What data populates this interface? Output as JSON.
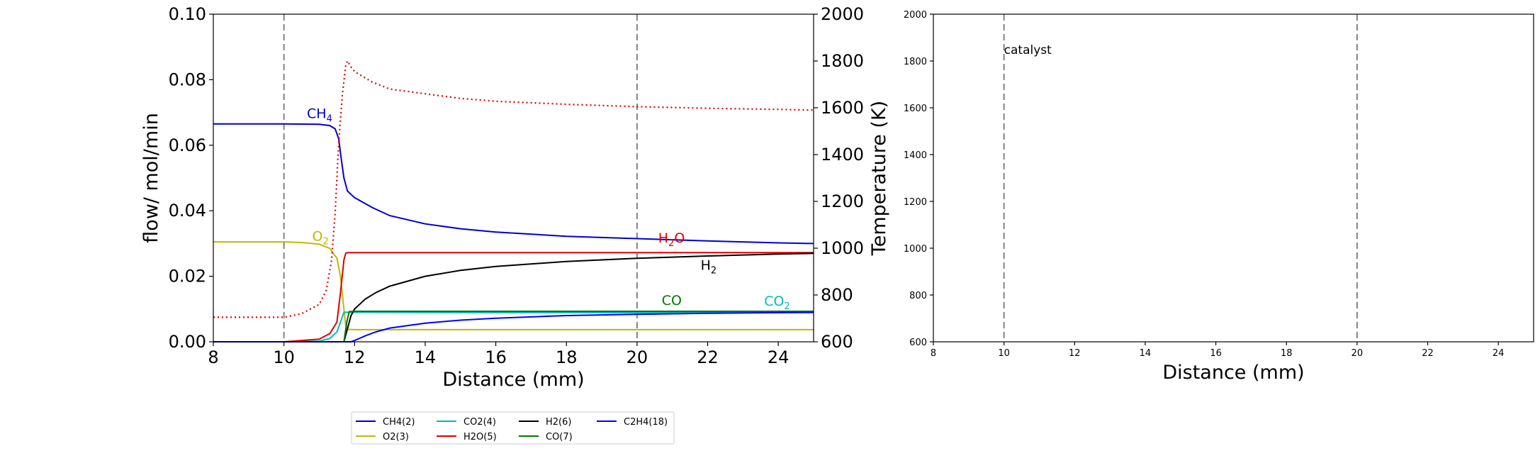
{
  "chart_data": [
    {
      "type": "line",
      "xlabel": "Distance (mm)",
      "ylabel": "flow/ mol/min",
      "y2label": "Temperature (K)",
      "xlim": [
        8,
        25
      ],
      "ylim": [
        0,
        0.1
      ],
      "y2lim": [
        600,
        2000
      ],
      "xticks": [
        "8",
        "10",
        "12",
        "14",
        "16",
        "18",
        "20",
        "22",
        "24"
      ],
      "yticks": [
        "0.00",
        "0.02",
        "0.04",
        "0.06",
        "0.08",
        "0.10"
      ],
      "y2ticks": [
        "600",
        "800",
        "1000",
        "1200",
        "1400",
        "1600",
        "1800",
        "2000"
      ],
      "vlines": [
        10,
        20
      ],
      "grid": false,
      "legend_position": "below",
      "series": [
        {
          "name": "CH4(2)",
          "color": "#0000cc",
          "x": [
            8,
            10,
            11,
            11.3,
            11.45,
            11.55,
            11.62,
            11.7,
            11.8,
            12,
            12.5,
            13,
            14,
            15,
            16,
            18,
            20,
            22,
            24,
            25
          ],
          "y": [
            0.0665,
            0.0665,
            0.0664,
            0.066,
            0.065,
            0.062,
            0.056,
            0.05,
            0.046,
            0.044,
            0.041,
            0.0385,
            0.036,
            0.0345,
            0.0335,
            0.0322,
            0.0315,
            0.0308,
            0.0302,
            0.03
          ]
        },
        {
          "name": "O2(3)",
          "color": "#bbbb00",
          "x": [
            8,
            10,
            10.5,
            11,
            11.3,
            11.5,
            11.6,
            11.7,
            11.75,
            11.8,
            12,
            25
          ],
          "y": [
            0.0305,
            0.0305,
            0.0303,
            0.0298,
            0.0285,
            0.0255,
            0.02,
            0.01,
            0.005,
            0.0038,
            0.0037,
            0.0037
          ]
        },
        {
          "name": "CO2(4)",
          "color": "#00bbbb",
          "x": [
            8,
            10,
            11,
            11.3,
            11.5,
            11.6,
            11.7,
            11.8,
            12,
            16,
            20,
            25
          ],
          "y": [
            0,
            0,
            0.0002,
            0.001,
            0.003,
            0.006,
            0.009,
            0.009,
            0.009,
            0.0089,
            0.0089,
            0.0089
          ]
        },
        {
          "name": "H2O(5)",
          "color": "#dd0000",
          "x": [
            8,
            10,
            11,
            11.3,
            11.5,
            11.6,
            11.7,
            11.75,
            11.8,
            12,
            25
          ],
          "y": [
            0,
            0,
            0.0008,
            0.0025,
            0.006,
            0.015,
            0.025,
            0.027,
            0.0272,
            0.0272,
            0.0272
          ]
        },
        {
          "name": "H2(6)",
          "color": "#000000",
          "x": [
            8,
            11.7,
            11.8,
            11.9,
            12,
            12.3,
            12.6,
            13,
            14,
            15,
            16,
            18,
            20,
            22,
            24,
            25
          ],
          "y": [
            0,
            0,
            0.004,
            0.008,
            0.01,
            0.013,
            0.015,
            0.017,
            0.02,
            0.0218,
            0.023,
            0.0245,
            0.0255,
            0.0262,
            0.0268,
            0.027
          ]
        },
        {
          "name": "CO(7)",
          "color": "#007700",
          "x": [
            8,
            11.7,
            11.78,
            11.85,
            12,
            25
          ],
          "y": [
            0,
            0,
            0.006,
            0.0092,
            0.0093,
            0.0093
          ]
        },
        {
          "name": "C2H4(18)",
          "color": "#0000ff",
          "x": [
            8,
            11.9,
            12,
            12.3,
            12.6,
            13,
            14,
            15,
            16,
            18,
            20,
            22,
            24,
            25
          ],
          "y": [
            0,
            0,
            0.0004,
            0.0018,
            0.003,
            0.0042,
            0.0057,
            0.0066,
            0.0072,
            0.008,
            0.0084,
            0.0087,
            0.0089,
            0.009
          ]
        },
        {
          "name": "",
          "axis": "y2",
          "color": "#dd0000",
          "dash": "dotted",
          "x": [
            8,
            10,
            10.5,
            11,
            11.2,
            11.35,
            11.45,
            11.55,
            11.65,
            11.75,
            11.8,
            11.9,
            12,
            12.5,
            13,
            14,
            15,
            16,
            18,
            20,
            22,
            24,
            25
          ],
          "y": [
            705,
            705,
            720,
            760,
            820,
            950,
            1150,
            1450,
            1650,
            1780,
            1800,
            1775,
            1755,
            1710,
            1680,
            1660,
            1640,
            1628,
            1615,
            1605,
            1598,
            1593,
            1590
          ]
        }
      ],
      "annotations": [
        {
          "text": "CH",
          "sub": "4",
          "x": 10.65,
          "y": 0.0683,
          "color": "#0000cc"
        },
        {
          "text": "O",
          "sub": "2",
          "x": 10.8,
          "y": 0.0308,
          "color": "#bbbb00"
        },
        {
          "text": "H",
          "sub": "2",
          "mid": "O",
          "x": 20.6,
          "y": 0.0303,
          "color": "#dd0000"
        },
        {
          "text": "H",
          "sub": "2",
          "x": 21.8,
          "y": 0.022,
          "color": "#000000"
        },
        {
          "text": "CO",
          "sub": "",
          "x": 20.7,
          "y": 0.0113,
          "color": "#007700"
        },
        {
          "text": "CO",
          "sub": "2",
          "x": 23.6,
          "y": 0.011,
          "color": "#00bbbb"
        }
      ]
    },
    {
      "type": "line",
      "xlabel": "Distance (mm)",
      "xlim": [
        8,
        25
      ],
      "ylim": [
        600,
        2000
      ],
      "xticks": [
        "8",
        "10",
        "12",
        "14",
        "16",
        "18",
        "20",
        "22",
        "24"
      ],
      "yticks": [
        "600",
        "800",
        "1000",
        "1200",
        "1400",
        "1600",
        "1800",
        "2000"
      ],
      "vlines": [
        10,
        20
      ],
      "grid": false,
      "series": [],
      "annotations": [
        {
          "text": "catalyst",
          "x": 10,
          "y": 1830
        }
      ]
    }
  ]
}
